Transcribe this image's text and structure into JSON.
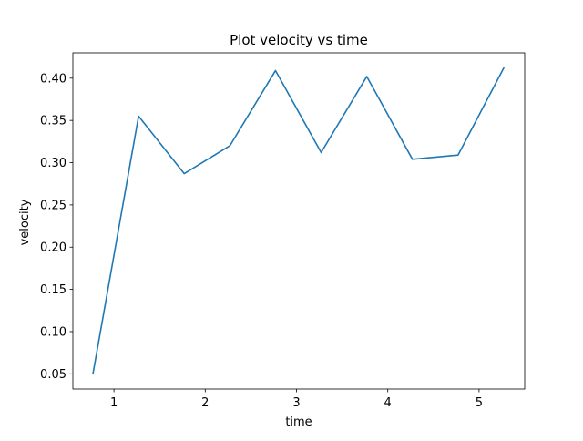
{
  "chart_data": {
    "type": "line",
    "title": "Plot velocity vs time",
    "xlabel": "time",
    "ylabel": "velocity",
    "x": [
      0.77,
      1.27,
      1.77,
      2.27,
      2.77,
      3.27,
      3.77,
      4.27,
      4.77,
      5.27
    ],
    "series": [
      {
        "values": [
          0.05,
          0.355,
          0.287,
          0.32,
          0.409,
          0.312,
          0.402,
          0.304,
          0.309,
          0.412
        ]
      }
    ],
    "xlim": [
      0.55,
      5.5
    ],
    "ylim": [
      0.032,
      0.43
    ],
    "xticks": [
      1,
      2,
      3,
      4,
      5
    ],
    "xtick_labels": [
      "1",
      "2",
      "3",
      "4",
      "5"
    ],
    "yticks": [
      0.05,
      0.1,
      0.15,
      0.2,
      0.25,
      0.3,
      0.35,
      0.4
    ],
    "ytick_labels": [
      "0.05",
      "0.10",
      "0.15",
      "0.20",
      "0.25",
      "0.30",
      "0.35",
      "0.40"
    ],
    "grid": false,
    "legend": "none",
    "colors": {
      "line": "#1f77b4",
      "axes": "#000000",
      "background": "#ffffff"
    }
  }
}
